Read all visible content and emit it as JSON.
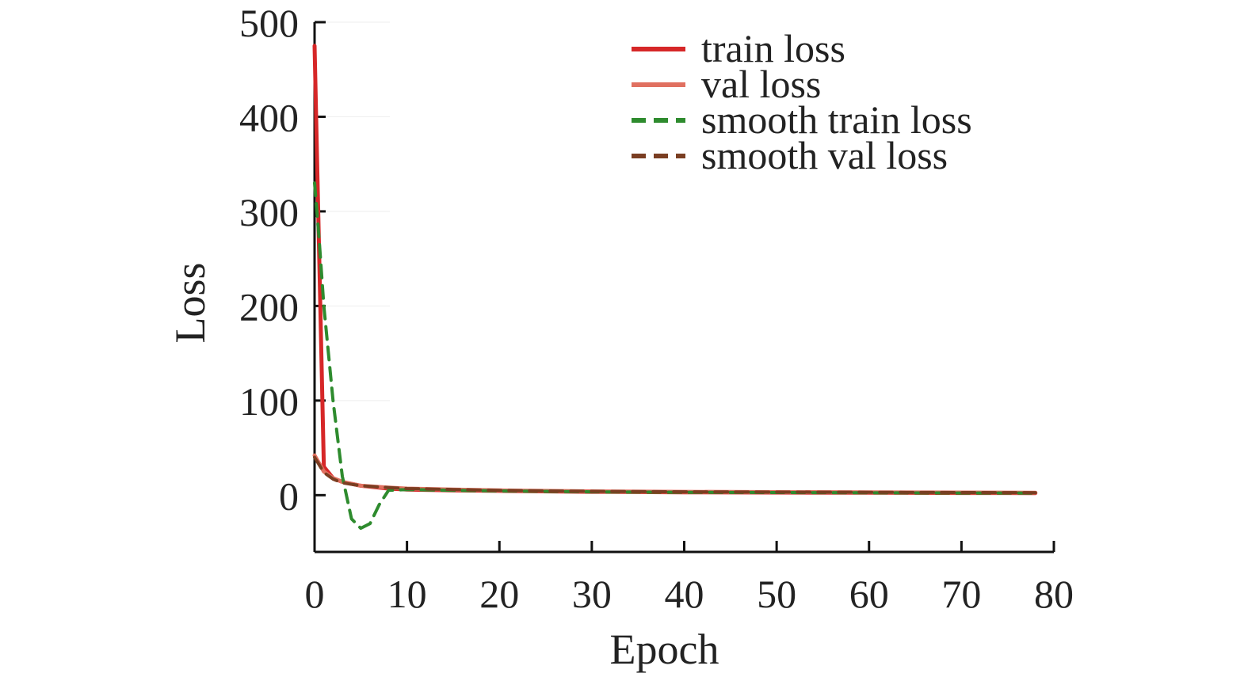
{
  "chart_data": {
    "type": "line",
    "title": "",
    "xlabel": "Epoch",
    "ylabel": "Loss",
    "xlim": [
      0,
      80
    ],
    "ylim": [
      -60,
      500
    ],
    "xticks": [
      0,
      10,
      20,
      30,
      40,
      50,
      60,
      70,
      80
    ],
    "yticks": [
      0,
      100,
      200,
      300,
      400,
      500
    ],
    "grid": false,
    "legend_position": "top-right",
    "series": [
      {
        "name": "train loss",
        "color": "#d62728",
        "style": "solid",
        "x": [
          0,
          1,
          2,
          3,
          5,
          8,
          10,
          15,
          20,
          30,
          40,
          50,
          60,
          70,
          78
        ],
        "y": [
          475,
          30,
          18,
          14,
          10,
          7,
          6,
          5,
          4.5,
          3.5,
          3,
          2.8,
          2.5,
          2.3,
          2.2
        ]
      },
      {
        "name": "val loss",
        "color": "#e07060",
        "style": "solid",
        "x": [
          0,
          1,
          2,
          3,
          5,
          8,
          10,
          15,
          20,
          30,
          40,
          50,
          60,
          70,
          78
        ],
        "y": [
          42,
          25,
          18,
          14,
          10,
          8,
          7,
          6,
          5,
          4,
          3.5,
          3.2,
          3,
          2.8,
          2.6
        ]
      },
      {
        "name": "smooth train loss",
        "color": "#2e8b2e",
        "style": "dashed",
        "x": [
          0,
          0.5,
          1,
          2,
          3,
          4,
          5,
          6,
          7,
          8,
          10,
          15,
          20,
          30,
          40,
          50,
          60,
          70,
          78
        ],
        "y": [
          330,
          270,
          200,
          100,
          20,
          -25,
          -35,
          -30,
          -10,
          5,
          6,
          5,
          4.5,
          3.5,
          3,
          2.8,
          2.5,
          2.3,
          2.2
        ]
      },
      {
        "name": "smooth val loss",
        "color": "#7a3e22",
        "style": "dashed",
        "x": [
          0,
          1,
          2,
          3,
          5,
          8,
          10,
          15,
          20,
          30,
          40,
          50,
          60,
          70,
          78
        ],
        "y": [
          40,
          24,
          17,
          13,
          10,
          8,
          7,
          6,
          5,
          4,
          3.5,
          3.2,
          3,
          2.8,
          2.6
        ]
      }
    ]
  }
}
